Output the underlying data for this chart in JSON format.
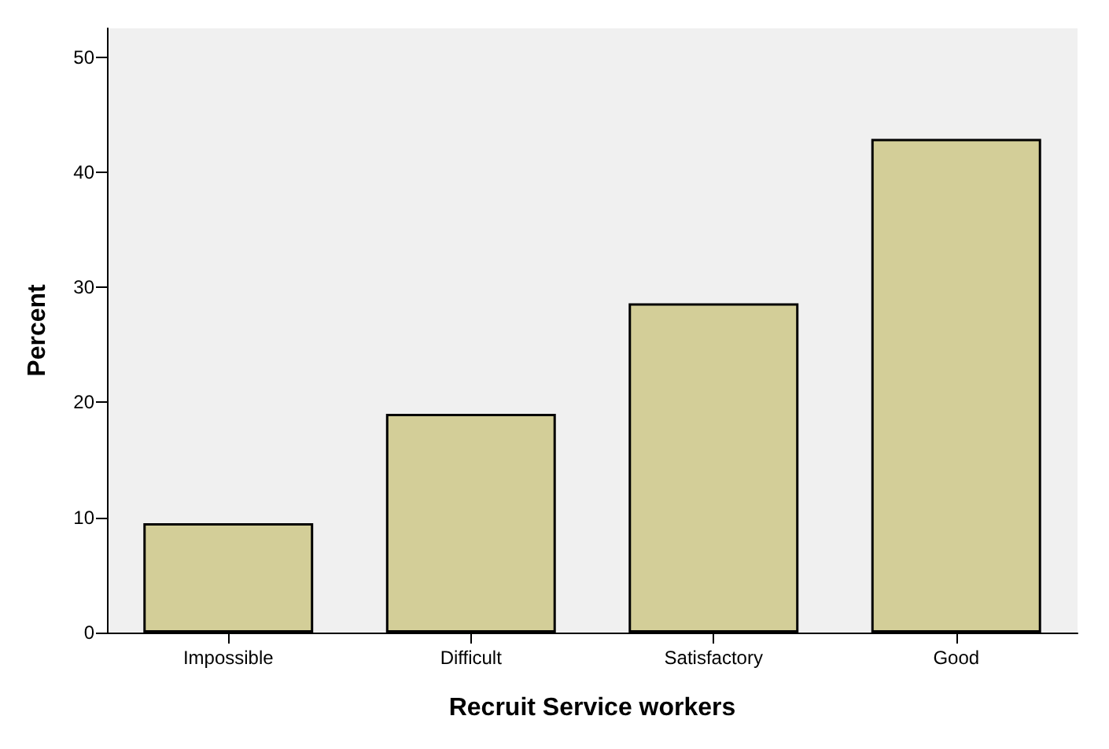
{
  "chart_data": {
    "type": "bar",
    "xlabel": "Recruit Service workers",
    "ylabel": "Percent",
    "categories": [
      "Impossible",
      "Difficult",
      "Satisfactory",
      "Good"
    ],
    "values": [
      9.5,
      19,
      28.6,
      42.9
    ],
    "color": "#d3ce98",
    "ylim": [
      0,
      52.5
    ],
    "yticks": [
      0,
      10,
      20,
      30,
      40,
      50
    ],
    "grid": false
  }
}
